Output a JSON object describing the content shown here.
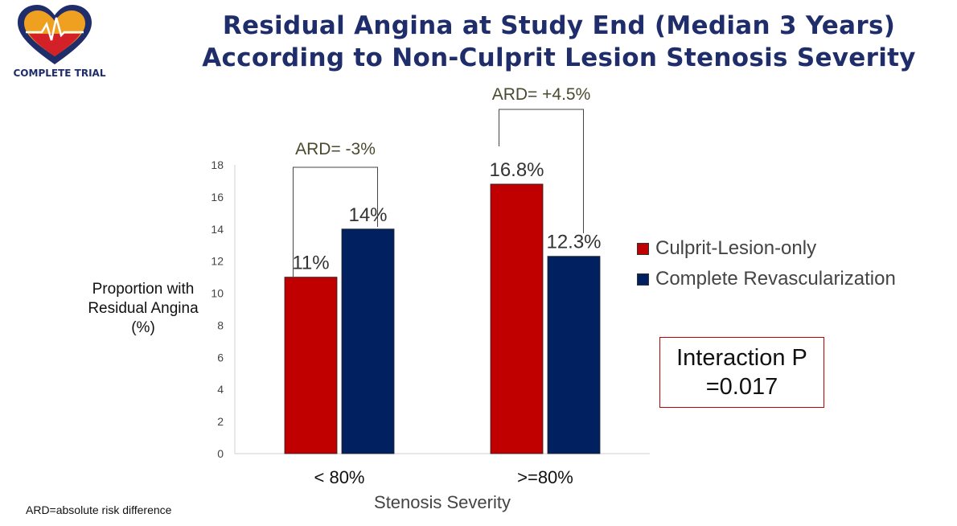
{
  "header": {
    "title_line1": "Residual Angina at Study End (Median 3 Years)",
    "title_line2": "According to Non-Culprit Lesion Stenosis Severity"
  },
  "logo": {
    "text": "COMPLETE TRIAL"
  },
  "colors": {
    "culprit": "#c00000",
    "complete": "#002060",
    "title": "#1f2d6b",
    "ard": "#4a4a2f"
  },
  "chart_data": {
    "type": "bar",
    "categories": [
      "< 80%",
      ">=80%"
    ],
    "series": [
      {
        "name": "Culprit-Lesion-only",
        "values": [
          11,
          16.8
        ],
        "labels": [
          "11%",
          "16.8%"
        ]
      },
      {
        "name": "Complete Revascularization",
        "values": [
          14,
          12.3
        ],
        "labels": [
          "14%",
          "12.3%"
        ]
      }
    ],
    "ylim": [
      0,
      18
    ],
    "yticks": [
      0,
      2,
      4,
      6,
      8,
      10,
      12,
      14,
      16,
      18
    ],
    "ylabel_lines": [
      "Proportion with",
      "Residual Angina",
      "(%)"
    ],
    "xlabel": "Stenosis Severity",
    "annotations": [
      "ARD= -3%",
      "ARD= +4.5%"
    ],
    "legend_position": "right"
  },
  "interaction_box": {
    "line1": "Interaction P",
    "line2": "=0.017"
  },
  "footnote": "ARD=absolute risk difference"
}
